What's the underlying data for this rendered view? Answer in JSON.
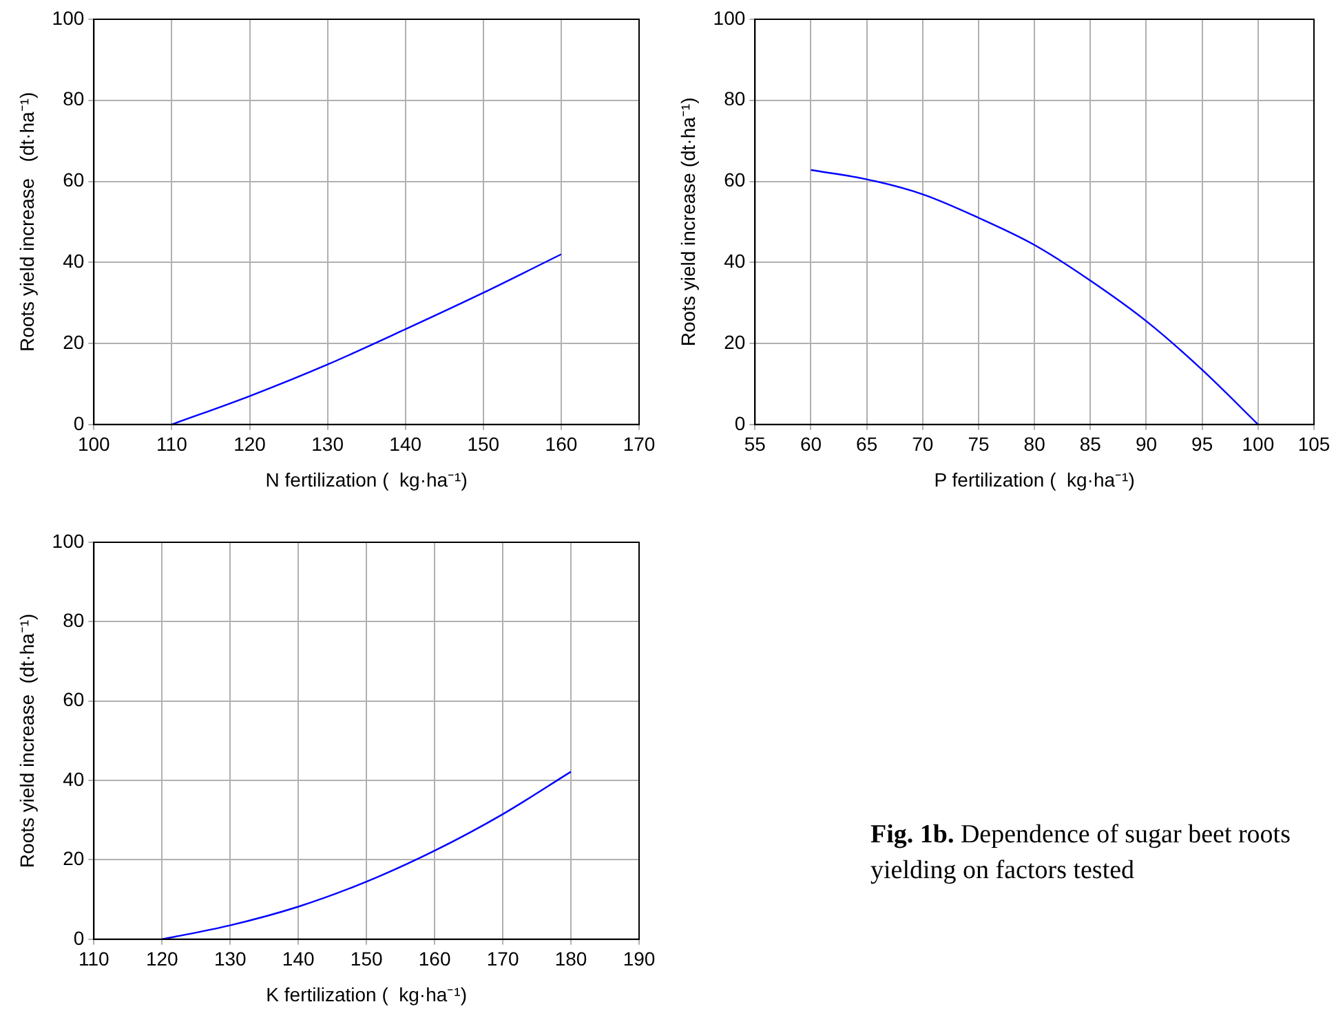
{
  "chart_data": [
    {
      "type": "line",
      "xlabel": "N fertilization (  kg·ha⁻¹)",
      "ylabel": "Roots yield increase   (dt·ha⁻¹)",
      "x": [
        110,
        120,
        130,
        140,
        150,
        160
      ],
      "values": [
        0,
        7,
        14.8,
        23.5,
        32.5,
        42
      ],
      "color": "#0000ff",
      "xlim": [
        100,
        170
      ],
      "xticks": [
        100,
        110,
        120,
        130,
        140,
        150,
        160,
        170
      ],
      "ylim": [
        0,
        100
      ],
      "yticks": [
        0,
        20,
        40,
        60,
        80,
        100
      ],
      "grid": true
    },
    {
      "type": "line",
      "xlabel": "P fertilization (  kg·ha⁻¹)",
      "ylabel": "Roots yield increase (dt·ha⁻¹)",
      "x": [
        60,
        65,
        70,
        75,
        80,
        85,
        90,
        95,
        100
      ],
      "values": [
        62.8,
        60.5,
        56.8,
        51,
        44.3,
        35.5,
        25.5,
        13.5,
        0
      ],
      "color": "#0000ff",
      "xlim": [
        55,
        105
      ],
      "xticks": [
        55,
        60,
        65,
        70,
        75,
        80,
        85,
        90,
        95,
        100,
        105
      ],
      "ylim": [
        0,
        100
      ],
      "yticks": [
        0,
        20,
        40,
        60,
        80,
        100
      ],
      "grid": true
    },
    {
      "type": "line",
      "xlabel": "K fertilization (  kg·ha⁻¹)",
      "ylabel": "Roots yield increase  (dt·ha⁻¹)",
      "x": [
        120,
        130,
        140,
        150,
        160,
        170,
        180
      ],
      "values": [
        0,
        3.5,
        8.2,
        14.5,
        22.3,
        31.5,
        42.2
      ],
      "color": "#0000ff",
      "xlim": [
        110,
        190
      ],
      "xticks": [
        110,
        120,
        130,
        140,
        150,
        160,
        170,
        180,
        190
      ],
      "ylim": [
        0,
        100
      ],
      "yticks": [
        0,
        20,
        40,
        60,
        80,
        100
      ],
      "grid": true
    },
    {
      "type": "other",
      "annotations": [
        "Fig. 1b.",
        "Dependence of sugar beet roots yielding on factors tested"
      ]
    }
  ]
}
